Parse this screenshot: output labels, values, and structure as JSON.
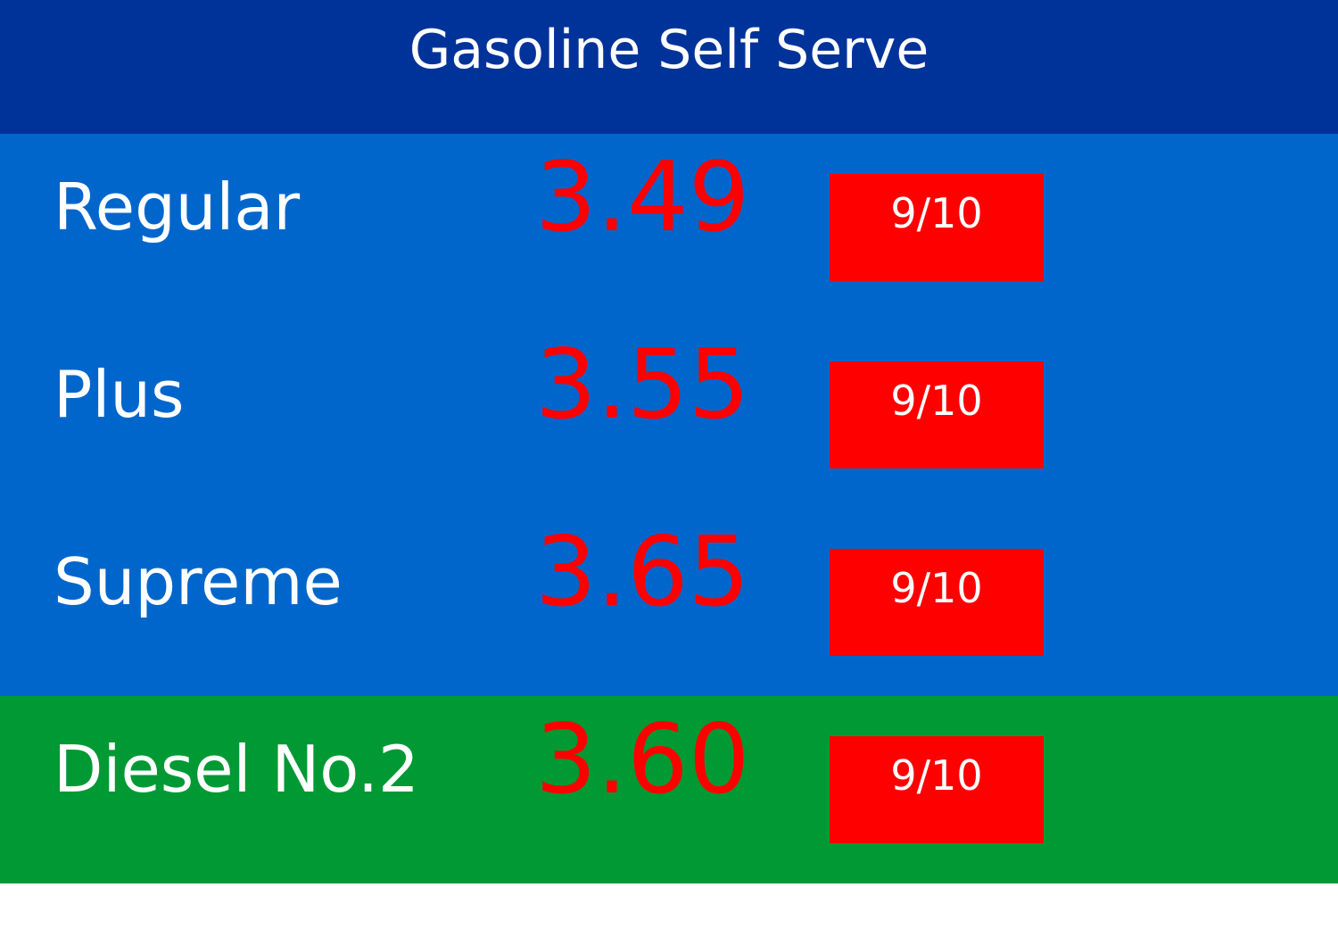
{
  "header": {
    "title": "Gasoline Self Serve"
  },
  "colors": {
    "header_bg": "#00339A",
    "gasoline_bg": "#0066CC",
    "diesel_bg": "#009933",
    "price_text": "#FF0000",
    "badge_bg": "#FF0000",
    "label_text": "#FFFFFF"
  },
  "rows": [
    {
      "grade": "Regular",
      "price": "3.49",
      "badge": "9/10"
    },
    {
      "grade": "Plus",
      "price": "3.55",
      "badge": "9/10"
    },
    {
      "grade": "Supreme",
      "price": "3.65",
      "badge": "9/10"
    },
    {
      "grade": "Diesel No.2",
      "price": "3.60",
      "badge": "9/10"
    }
  ]
}
